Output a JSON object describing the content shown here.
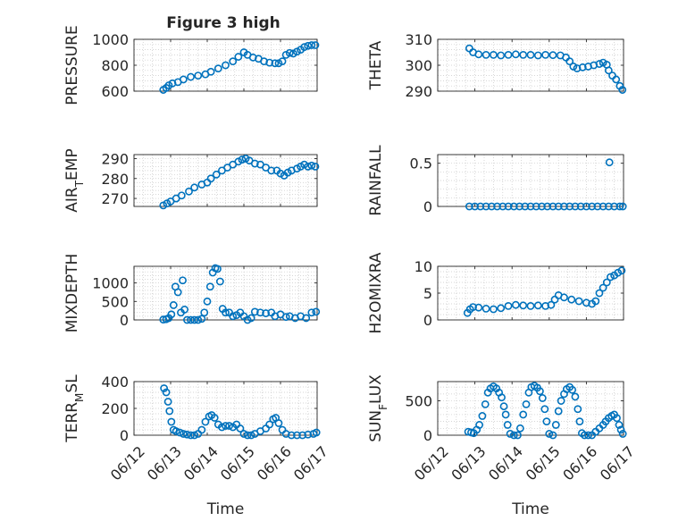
{
  "figure_title": "Figure 3 high",
  "colors": {
    "marker": "#0072BD",
    "axis": "#262626",
    "grid": "#c8c8c8"
  },
  "chart_data": [
    {
      "type": "scatter",
      "panel": "PRESSURE",
      "ylabel": "PRESSURE",
      "ylabel_sub": null,
      "xlabel": "",
      "ylim": [
        600,
        1000
      ],
      "yticks": [
        600,
        800,
        1000
      ],
      "xticks": [
        "06/12",
        "06/13",
        "06/14",
        "06/15",
        "06/16",
        "06/17"
      ],
      "xlim": [
        0,
        5
      ],
      "grid": "on",
      "marker": "circle",
      "points": [
        [
          0.8,
          610
        ],
        [
          0.88,
          625
        ],
        [
          0.95,
          645
        ],
        [
          1.05,
          660
        ],
        [
          1.2,
          670
        ],
        [
          1.35,
          690
        ],
        [
          1.55,
          710
        ],
        [
          1.75,
          720
        ],
        [
          1.95,
          730
        ],
        [
          2.1,
          750
        ],
        [
          2.3,
          775
        ],
        [
          2.5,
          800
        ],
        [
          2.7,
          830
        ],
        [
          2.85,
          865
        ],
        [
          3.0,
          900
        ],
        [
          3.1,
          880
        ],
        [
          3.25,
          860
        ],
        [
          3.4,
          850
        ],
        [
          3.55,
          830
        ],
        [
          3.7,
          820
        ],
        [
          3.85,
          815
        ],
        [
          3.95,
          815
        ],
        [
          4.05,
          830
        ],
        [
          4.15,
          880
        ],
        [
          4.25,
          895
        ],
        [
          4.35,
          890
        ],
        [
          4.45,
          905
        ],
        [
          4.55,
          920
        ],
        [
          4.65,
          940
        ],
        [
          4.75,
          950
        ],
        [
          4.85,
          955
        ],
        [
          4.95,
          955
        ]
      ]
    },
    {
      "type": "scatter",
      "panel": "THETA",
      "ylabel": "THETA",
      "ylabel_sub": null,
      "xlabel": "",
      "ylim": [
        290,
        310
      ],
      "yticks": [
        290,
        300,
        310
      ],
      "xticks": [
        "06/12",
        "06/13",
        "06/14",
        "06/15",
        "06/16",
        "06/17"
      ],
      "xlim": [
        0,
        5
      ],
      "grid": "on",
      "marker": "circle",
      "points": [
        [
          0.85,
          306.5
        ],
        [
          0.95,
          305
        ],
        [
          1.1,
          304.2
        ],
        [
          1.3,
          304
        ],
        [
          1.5,
          304
        ],
        [
          1.7,
          303.8
        ],
        [
          1.9,
          304
        ],
        [
          2.1,
          304.2
        ],
        [
          2.3,
          304
        ],
        [
          2.5,
          304
        ],
        [
          2.7,
          303.8
        ],
        [
          2.9,
          304
        ],
        [
          3.1,
          303.9
        ],
        [
          3.3,
          303.8
        ],
        [
          3.45,
          303
        ],
        [
          3.55,
          301.5
        ],
        [
          3.65,
          299.5
        ],
        [
          3.75,
          298.8
        ],
        [
          3.9,
          299.2
        ],
        [
          4.05,
          299.5
        ],
        [
          4.2,
          300
        ],
        [
          4.35,
          300.5
        ],
        [
          4.45,
          301
        ],
        [
          4.55,
          300.2
        ],
        [
          4.6,
          298
        ],
        [
          4.7,
          296
        ],
        [
          4.8,
          294.5
        ],
        [
          4.9,
          292
        ],
        [
          4.97,
          290.5
        ]
      ]
    },
    {
      "type": "scatter",
      "panel": "AIR_TEMP",
      "ylabel": "AIR",
      "ylabel_sub": "T",
      "ylabel_rest": "EMP",
      "xlabel": "",
      "ylim": [
        266,
        292
      ],
      "yticks": [
        270,
        280,
        290
      ],
      "xticks": [
        "06/12",
        "06/13",
        "06/14",
        "06/15",
        "06/16",
        "06/17"
      ],
      "xlim": [
        0,
        5
      ],
      "grid": "on",
      "marker": "circle",
      "points": [
        [
          0.8,
          266.5
        ],
        [
          0.9,
          267.5
        ],
        [
          1.0,
          268.5
        ],
        [
          1.15,
          270
        ],
        [
          1.3,
          271.5
        ],
        [
          1.5,
          273.5
        ],
        [
          1.65,
          275.5
        ],
        [
          1.85,
          277
        ],
        [
          2.0,
          278
        ],
        [
          2.1,
          280
        ],
        [
          2.25,
          282
        ],
        [
          2.4,
          284
        ],
        [
          2.55,
          285.5
        ],
        [
          2.7,
          287
        ],
        [
          2.85,
          288.5
        ],
        [
          2.95,
          289.5
        ],
        [
          3.05,
          290
        ],
        [
          3.15,
          289
        ],
        [
          3.3,
          287.5
        ],
        [
          3.45,
          287
        ],
        [
          3.6,
          285.5
        ],
        [
          3.75,
          284
        ],
        [
          3.9,
          284
        ],
        [
          4.0,
          282.5
        ],
        [
          4.1,
          281.5
        ],
        [
          4.2,
          283
        ],
        [
          4.3,
          284
        ],
        [
          4.45,
          285
        ],
        [
          4.55,
          286
        ],
        [
          4.65,
          287
        ],
        [
          4.75,
          286
        ],
        [
          4.85,
          286.5
        ],
        [
          4.95,
          286
        ]
      ]
    },
    {
      "type": "scatter",
      "panel": "RAINFALL",
      "ylabel": "RAINFALL",
      "ylabel_sub": null,
      "xlabel": "",
      "ylim": [
        0,
        0.6
      ],
      "yticks": [
        0,
        0.5
      ],
      "xticks": [
        "06/12",
        "06/13",
        "06/14",
        "06/15",
        "06/16",
        "06/17"
      ],
      "xlim": [
        0,
        5
      ],
      "grid": "on",
      "marker": "circle",
      "points": [
        [
          0.85,
          0
        ],
        [
          1.0,
          0
        ],
        [
          1.15,
          0
        ],
        [
          1.3,
          0
        ],
        [
          1.45,
          0
        ],
        [
          1.6,
          0
        ],
        [
          1.75,
          0
        ],
        [
          1.9,
          0
        ],
        [
          2.05,
          0
        ],
        [
          2.2,
          0
        ],
        [
          2.35,
          0
        ],
        [
          2.5,
          0
        ],
        [
          2.65,
          0
        ],
        [
          2.8,
          0
        ],
        [
          2.95,
          0
        ],
        [
          3.1,
          0
        ],
        [
          3.25,
          0
        ],
        [
          3.4,
          0
        ],
        [
          3.55,
          0
        ],
        [
          3.7,
          0
        ],
        [
          3.85,
          0
        ],
        [
          4.0,
          0
        ],
        [
          4.15,
          0
        ],
        [
          4.3,
          0
        ],
        [
          4.45,
          0
        ],
        [
          4.6,
          0
        ],
        [
          4.75,
          0
        ],
        [
          4.9,
          0
        ],
        [
          4.98,
          0
        ],
        [
          4.62,
          0.51
        ]
      ]
    },
    {
      "type": "scatter",
      "panel": "MIXDEPTH",
      "ylabel": "MIXDEPTH",
      "ylabel_sub": null,
      "xlabel": "",
      "ylim": [
        0,
        1450
      ],
      "yticks": [
        0,
        500,
        1000
      ],
      "xticks": [
        "06/12",
        "06/13",
        "06/14",
        "06/15",
        "06/16",
        "06/17"
      ],
      "xlim": [
        0,
        5
      ],
      "grid": "on",
      "marker": "circle",
      "points": [
        [
          0.8,
          10
        ],
        [
          0.88,
          20
        ],
        [
          0.95,
          50
        ],
        [
          1.02,
          150
        ],
        [
          1.08,
          400
        ],
        [
          1.13,
          900
        ],
        [
          1.2,
          750
        ],
        [
          1.28,
          200
        ],
        [
          1.33,
          1070
        ],
        [
          1.38,
          280
        ],
        [
          1.45,
          0
        ],
        [
          1.55,
          0
        ],
        [
          1.65,
          0
        ],
        [
          1.75,
          0
        ],
        [
          1.85,
          30
        ],
        [
          1.92,
          200
        ],
        [
          2.0,
          500
        ],
        [
          2.08,
          900
        ],
        [
          2.15,
          1280
        ],
        [
          2.22,
          1400
        ],
        [
          2.28,
          1380
        ],
        [
          2.35,
          1040
        ],
        [
          2.42,
          300
        ],
        [
          2.5,
          200
        ],
        [
          2.6,
          200
        ],
        [
          2.7,
          100
        ],
        [
          2.8,
          130
        ],
        [
          2.9,
          200
        ],
        [
          3.0,
          100
        ],
        [
          3.1,
          0
        ],
        [
          3.2,
          50
        ],
        [
          3.3,
          220
        ],
        [
          3.45,
          200
        ],
        [
          3.6,
          180
        ],
        [
          3.75,
          200
        ],
        [
          3.85,
          100
        ],
        [
          4.0,
          150
        ],
        [
          4.15,
          80
        ],
        [
          4.25,
          100
        ],
        [
          4.4,
          50
        ],
        [
          4.55,
          100
        ],
        [
          4.7,
          50
        ],
        [
          4.85,
          200
        ],
        [
          4.97,
          220
        ]
      ]
    },
    {
      "type": "scatter",
      "panel": "H2OMIXRA",
      "ylabel": "H2OMIXRA",
      "ylabel_sub": null,
      "xlabel": "",
      "ylim": [
        0,
        10
      ],
      "yticks": [
        0,
        5,
        10
      ],
      "xticks": [
        "06/12",
        "06/13",
        "06/14",
        "06/15",
        "06/16",
        "06/17"
      ],
      "xlim": [
        0,
        5
      ],
      "grid": "on",
      "marker": "circle",
      "points": [
        [
          0.8,
          1.3
        ],
        [
          0.87,
          2.0
        ],
        [
          0.95,
          2.4
        ],
        [
          1.1,
          2.3
        ],
        [
          1.3,
          2.1
        ],
        [
          1.5,
          2.0
        ],
        [
          1.7,
          2.2
        ],
        [
          1.9,
          2.6
        ],
        [
          2.1,
          2.8
        ],
        [
          2.3,
          2.7
        ],
        [
          2.5,
          2.6
        ],
        [
          2.7,
          2.7
        ],
        [
          2.9,
          2.6
        ],
        [
          3.05,
          2.8
        ],
        [
          3.15,
          3.8
        ],
        [
          3.25,
          4.6
        ],
        [
          3.4,
          4.2
        ],
        [
          3.6,
          3.8
        ],
        [
          3.8,
          3.5
        ],
        [
          4.0,
          3.2
        ],
        [
          4.15,
          3.0
        ],
        [
          4.25,
          3.5
        ],
        [
          4.35,
          5.0
        ],
        [
          4.45,
          6.0
        ],
        [
          4.55,
          7.0
        ],
        [
          4.65,
          8.0
        ],
        [
          4.75,
          8.3
        ],
        [
          4.85,
          8.8
        ],
        [
          4.95,
          9.2
        ]
      ]
    },
    {
      "type": "scatter",
      "panel": "TERR_MSL",
      "ylabel": "TERR",
      "ylabel_sub": "M",
      "ylabel_rest": "SL",
      "xlabel": "Time",
      "ylim": [
        0,
        400
      ],
      "yticks": [
        0,
        200,
        400
      ],
      "xticks": [
        "06/12",
        "06/13",
        "06/14",
        "06/15",
        "06/16",
        "06/17"
      ],
      "xlim": [
        0,
        5
      ],
      "grid": "on",
      "marker": "circle",
      "points": [
        [
          0.82,
          350
        ],
        [
          0.88,
          320
        ],
        [
          0.93,
          250
        ],
        [
          0.97,
          180
        ],
        [
          1.02,
          100
        ],
        [
          1.08,
          40
        ],
        [
          1.15,
          30
        ],
        [
          1.25,
          20
        ],
        [
          1.35,
          10
        ],
        [
          1.45,
          5
        ],
        [
          1.55,
          0
        ],
        [
          1.65,
          0
        ],
        [
          1.75,
          10
        ],
        [
          1.85,
          40
        ],
        [
          1.95,
          100
        ],
        [
          2.05,
          140
        ],
        [
          2.12,
          150
        ],
        [
          2.2,
          130
        ],
        [
          2.3,
          80
        ],
        [
          2.4,
          60
        ],
        [
          2.5,
          70
        ],
        [
          2.6,
          70
        ],
        [
          2.7,
          60
        ],
        [
          2.8,
          80
        ],
        [
          2.9,
          50
        ],
        [
          3.0,
          10
        ],
        [
          3.1,
          0
        ],
        [
          3.2,
          0
        ],
        [
          3.3,
          10
        ],
        [
          3.45,
          30
        ],
        [
          3.6,
          50
        ],
        [
          3.7,
          80
        ],
        [
          3.8,
          120
        ],
        [
          3.87,
          130
        ],
        [
          3.95,
          90
        ],
        [
          4.05,
          40
        ],
        [
          4.15,
          10
        ],
        [
          4.3,
          0
        ],
        [
          4.45,
          0
        ],
        [
          4.6,
          0
        ],
        [
          4.75,
          5
        ],
        [
          4.9,
          10
        ],
        [
          4.98,
          20
        ]
      ]
    },
    {
      "type": "scatter",
      "panel": "SUN_FLUX",
      "ylabel": "SUN",
      "ylabel_sub": "F",
      "ylabel_rest": "LUX",
      "xlabel": "Time",
      "ylim": [
        0,
        780
      ],
      "yticks": [
        0,
        500
      ],
      "xticks": [
        "06/12",
        "06/13",
        "06/14",
        "06/15",
        "06/16",
        "06/17"
      ],
      "xlim": [
        0,
        5
      ],
      "grid": "on",
      "marker": "circle",
      "points": [
        [
          0.82,
          50
        ],
        [
          0.9,
          40
        ],
        [
          0.97,
          30
        ],
        [
          1.05,
          80
        ],
        [
          1.12,
          150
        ],
        [
          1.2,
          280
        ],
        [
          1.28,
          450
        ],
        [
          1.35,
          620
        ],
        [
          1.42,
          680
        ],
        [
          1.5,
          710
        ],
        [
          1.58,
          680
        ],
        [
          1.65,
          620
        ],
        [
          1.72,
          550
        ],
        [
          1.78,
          420
        ],
        [
          1.83,
          300
        ],
        [
          1.88,
          150
        ],
        [
          1.95,
          20
        ],
        [
          2.05,
          0
        ],
        [
          2.15,
          0
        ],
        [
          2.22,
          100
        ],
        [
          2.3,
          300
        ],
        [
          2.38,
          450
        ],
        [
          2.45,
          620
        ],
        [
          2.52,
          700
        ],
        [
          2.6,
          720
        ],
        [
          2.68,
          690
        ],
        [
          2.75,
          640
        ],
        [
          2.82,
          540
        ],
        [
          2.88,
          380
        ],
        [
          2.93,
          200
        ],
        [
          3.0,
          20
        ],
        [
          3.1,
          0
        ],
        [
          3.18,
          150
        ],
        [
          3.25,
          350
        ],
        [
          3.32,
          500
        ],
        [
          3.4,
          600
        ],
        [
          3.47,
          670
        ],
        [
          3.55,
          700
        ],
        [
          3.62,
          660
        ],
        [
          3.7,
          560
        ],
        [
          3.77,
          380
        ],
        [
          3.82,
          200
        ],
        [
          3.88,
          30
        ],
        [
          3.95,
          0
        ],
        [
          4.05,
          0
        ],
        [
          4.15,
          0
        ],
        [
          4.25,
          50
        ],
        [
          4.35,
          100
        ],
        [
          4.45,
          150
        ],
        [
          4.52,
          200
        ],
        [
          4.6,
          250
        ],
        [
          4.68,
          280
        ],
        [
          4.75,
          300
        ],
        [
          4.82,
          250
        ],
        [
          4.88,
          150
        ],
        [
          4.93,
          80
        ],
        [
          4.98,
          20
        ]
      ]
    }
  ]
}
